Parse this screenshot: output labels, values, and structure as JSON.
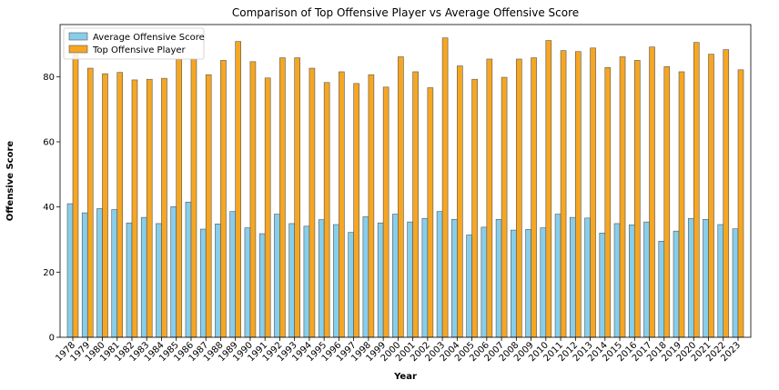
{
  "chart_data": {
    "type": "bar",
    "title": "Comparison of Top Offensive Player vs Average Offensive Score",
    "xlabel": "Year",
    "ylabel": "Offensive Score",
    "ylim": [
      0,
      96
    ],
    "yticks": [
      0,
      20,
      40,
      60,
      80
    ],
    "legend_position": "top-left",
    "grid": false,
    "categories": [
      "1978",
      "1979",
      "1980",
      "1981",
      "1982",
      "1983",
      "1984",
      "1985",
      "1986",
      "1987",
      "1988",
      "1989",
      "1990",
      "1991",
      "1992",
      "1993",
      "1994",
      "1995",
      "1996",
      "1997",
      "1998",
      "1999",
      "2000",
      "2001",
      "2002",
      "2003",
      "2004",
      "2005",
      "2006",
      "2007",
      "2008",
      "2009",
      "2010",
      "2011",
      "2012",
      "2013",
      "2014",
      "2015",
      "2016",
      "2017",
      "2018",
      "2019",
      "2020",
      "2021",
      "2022",
      "2023"
    ],
    "series": [
      {
        "name": "Average Offensive Score",
        "color": "#87CEEB",
        "values": [
          41.0,
          38.2,
          39.5,
          39.2,
          35.1,
          36.8,
          34.9,
          40.1,
          41.5,
          33.2,
          34.8,
          38.6,
          33.6,
          31.8,
          37.8,
          34.9,
          34.1,
          36.1,
          34.6,
          32.2,
          37.0,
          35.1,
          37.8,
          35.4,
          36.5,
          38.6,
          36.2,
          31.4,
          33.8,
          36.2,
          32.9,
          33.1,
          33.6,
          37.8,
          36.8,
          36.6,
          32.0,
          34.9,
          34.5,
          35.4,
          29.5,
          32.6,
          36.5,
          36.2,
          34.6,
          33.3
        ]
      },
      {
        "name": "Top Offensive Player",
        "color": "#F5A623",
        "values": [
          86.8,
          82.6,
          80.9,
          81.3,
          79.0,
          79.2,
          79.5,
          85.4,
          85.4,
          80.6,
          85.0,
          90.8,
          84.6,
          79.6,
          85.8,
          85.8,
          82.6,
          78.2,
          81.5,
          77.9,
          80.6,
          76.8,
          86.1,
          81.5,
          76.6,
          91.9,
          83.3,
          79.2,
          85.4,
          79.8,
          85.4,
          85.8,
          91.1,
          88.0,
          87.7,
          88.8,
          82.8,
          86.1,
          85.0,
          89.1,
          83.1,
          81.5,
          90.5,
          86.9,
          88.3,
          82.1
        ]
      }
    ]
  }
}
